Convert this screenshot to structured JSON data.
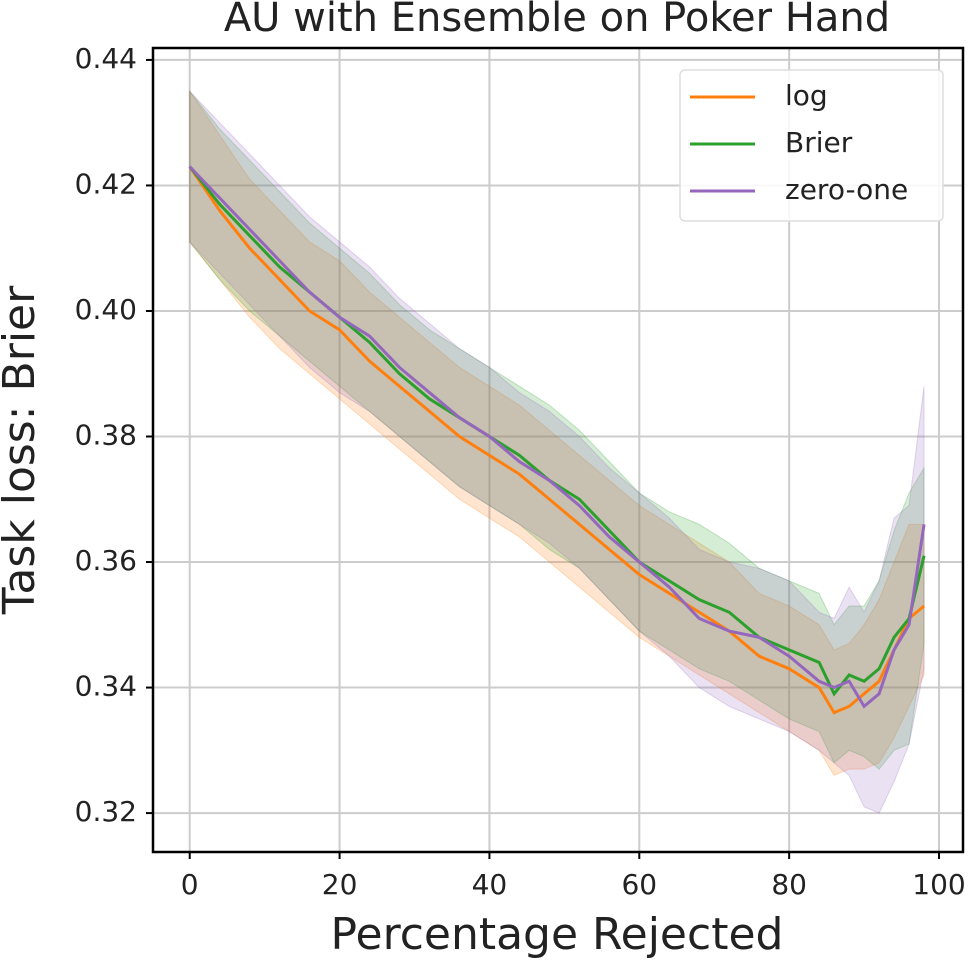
{
  "chart_data": {
    "type": "line",
    "title": "AU with Ensemble on Poker Hand",
    "xlabel": "Percentage Rejected",
    "ylabel": "Task loss: Brier",
    "x": [
      0,
      4,
      8,
      12,
      16,
      20,
      24,
      28,
      32,
      36,
      40,
      44,
      48,
      52,
      56,
      60,
      64,
      68,
      72,
      76,
      80,
      84,
      86,
      88,
      90,
      92,
      94,
      96,
      98
    ],
    "series": [
      {
        "name": "log",
        "color": "#ff7f0e",
        "values": [
          0.423,
          0.416,
          0.41,
          0.405,
          0.4,
          0.397,
          0.392,
          0.388,
          0.384,
          0.38,
          0.377,
          0.374,
          0.37,
          0.366,
          0.362,
          0.358,
          0.355,
          0.352,
          0.349,
          0.345,
          0.343,
          0.34,
          0.336,
          0.337,
          0.339,
          0.341,
          0.346,
          0.351,
          0.353
        ],
        "lower": [
          0.411,
          0.405,
          0.399,
          0.394,
          0.39,
          0.386,
          0.382,
          0.378,
          0.374,
          0.37,
          0.367,
          0.364,
          0.36,
          0.356,
          0.352,
          0.348,
          0.345,
          0.342,
          0.339,
          0.336,
          0.333,
          0.33,
          0.326,
          0.327,
          0.327,
          0.328,
          0.332,
          0.337,
          0.342
        ],
        "upper": [
          0.435,
          0.428,
          0.421,
          0.416,
          0.411,
          0.408,
          0.403,
          0.399,
          0.395,
          0.391,
          0.388,
          0.385,
          0.381,
          0.377,
          0.373,
          0.369,
          0.366,
          0.363,
          0.36,
          0.355,
          0.353,
          0.35,
          0.346,
          0.347,
          0.35,
          0.354,
          0.36,
          0.366,
          0.366
        ]
      },
      {
        "name": "Brier",
        "color": "#2ca02c",
        "values": [
          0.423,
          0.417,
          0.412,
          0.407,
          0.403,
          0.399,
          0.395,
          0.39,
          0.386,
          0.383,
          0.38,
          0.377,
          0.373,
          0.37,
          0.365,
          0.36,
          0.357,
          0.354,
          0.352,
          0.348,
          0.346,
          0.344,
          0.339,
          0.342,
          0.341,
          0.343,
          0.348,
          0.351,
          0.361
        ],
        "lower": [
          0.411,
          0.405,
          0.4,
          0.396,
          0.392,
          0.388,
          0.384,
          0.38,
          0.376,
          0.372,
          0.369,
          0.366,
          0.362,
          0.359,
          0.354,
          0.349,
          0.346,
          0.343,
          0.341,
          0.338,
          0.335,
          0.333,
          0.328,
          0.33,
          0.329,
          0.327,
          0.33,
          0.331,
          0.347
        ],
        "upper": [
          0.435,
          0.429,
          0.424,
          0.419,
          0.414,
          0.41,
          0.406,
          0.401,
          0.397,
          0.394,
          0.391,
          0.388,
          0.385,
          0.381,
          0.376,
          0.371,
          0.368,
          0.366,
          0.363,
          0.359,
          0.357,
          0.355,
          0.35,
          0.353,
          0.353,
          0.357,
          0.365,
          0.371,
          0.375
        ]
      },
      {
        "name": "zero-one",
        "color": "#9467bd",
        "values": [
          0.423,
          0.418,
          0.413,
          0.408,
          0.403,
          0.399,
          0.396,
          0.391,
          0.387,
          0.383,
          0.38,
          0.376,
          0.373,
          0.369,
          0.364,
          0.36,
          0.356,
          0.351,
          0.349,
          0.348,
          0.345,
          0.341,
          0.34,
          0.341,
          0.337,
          0.339,
          0.346,
          0.35,
          0.366
        ],
        "lower": [
          0.411,
          0.406,
          0.401,
          0.396,
          0.391,
          0.387,
          0.384,
          0.38,
          0.376,
          0.372,
          0.369,
          0.366,
          0.363,
          0.359,
          0.354,
          0.349,
          0.345,
          0.34,
          0.337,
          0.335,
          0.333,
          0.33,
          0.328,
          0.326,
          0.321,
          0.32,
          0.325,
          0.331,
          0.343
        ],
        "upper": [
          0.435,
          0.43,
          0.425,
          0.42,
          0.415,
          0.411,
          0.407,
          0.402,
          0.398,
          0.394,
          0.391,
          0.387,
          0.384,
          0.38,
          0.375,
          0.371,
          0.367,
          0.362,
          0.36,
          0.359,
          0.357,
          0.352,
          0.351,
          0.356,
          0.352,
          0.357,
          0.367,
          0.369,
          0.388
        ]
      }
    ],
    "xlim": [
      -4.9,
      103.2
    ],
    "ylim": [
      0.3138,
      0.4419
    ],
    "xticks": [
      0,
      20,
      40,
      60,
      80,
      100
    ],
    "yticks": [
      {
        "value": 0.32,
        "label": "0.32"
      },
      {
        "value": 0.34,
        "label": "0.34"
      },
      {
        "value": 0.36,
        "label": "0.36"
      },
      {
        "value": 0.38,
        "label": "0.38"
      },
      {
        "value": 0.4,
        "label": "0.40"
      },
      {
        "value": 0.42,
        "label": "0.42"
      },
      {
        "value": 0.44,
        "label": "0.44"
      }
    ],
    "grid": true,
    "legend": "upper right"
  }
}
